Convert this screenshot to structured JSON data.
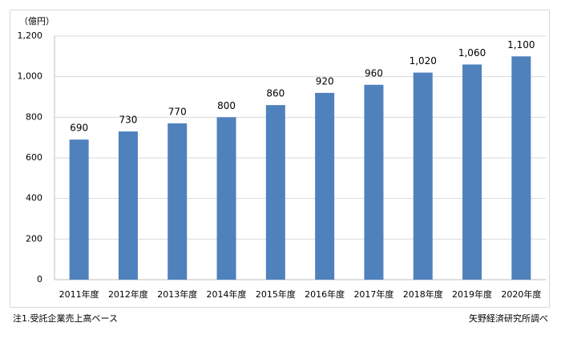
{
  "chart_data": {
    "type": "bar",
    "unit_label": "（億円）",
    "categories": [
      "2011年度",
      "2012年度",
      "2013年度",
      "2014年度",
      "2015年度",
      "2016年度",
      "2017年度",
      "2018年度",
      "2019年度",
      "2020年度"
    ],
    "values": [
      690,
      730,
      770,
      800,
      860,
      920,
      960,
      1020,
      1060,
      1100
    ],
    "value_labels": [
      "690",
      "730",
      "770",
      "800",
      "860",
      "920",
      "960",
      "1,020",
      "1,060",
      "1,100"
    ],
    "color": "#4f81bd",
    "ylim": [
      0,
      1200
    ],
    "yticks": [
      0,
      200,
      400,
      600,
      800,
      {
        "value": 1000,
        "label": "1,000"
      },
      {
        "value": 1200,
        "label": "1,200"
      }
    ],
    "grid": true,
    "footnote": "注1.受託企業売上高ベース",
    "source": "矢野経済研究所調べ"
  }
}
